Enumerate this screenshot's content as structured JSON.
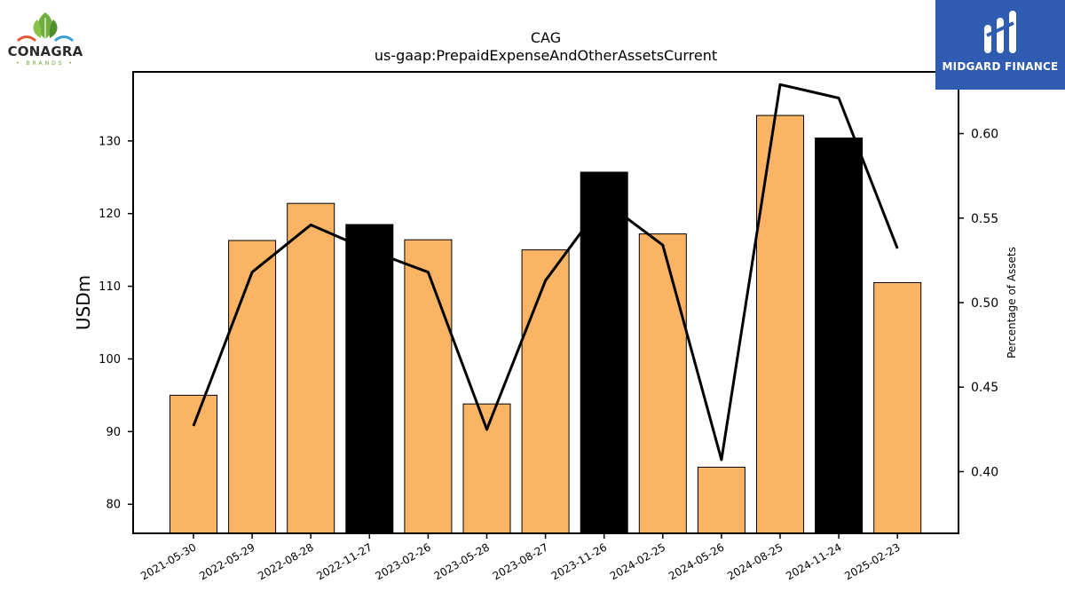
{
  "logos": {
    "left": {
      "name": "CONAGRA",
      "sub": "• BRANDS •"
    },
    "right": {
      "name": "MIDGARD FINANCE"
    }
  },
  "chart_data": {
    "type": "bar",
    "title": "CAG",
    "subtitle": "us-gaap:PrepaidExpenseAndOtherAssetsCurrent",
    "xlabel": "",
    "ylabel": "USDm",
    "y2label": "Percentage of Assets",
    "categories": [
      "2021-05-30",
      "2022-05-29",
      "2022-08-28",
      "2022-11-27",
      "2023-02-26",
      "2023-05-28",
      "2023-08-27",
      "2023-11-26",
      "2024-02-25",
      "2024-05-26",
      "2024-08-25",
      "2024-11-24",
      "2025-02-23"
    ],
    "series": [
      {
        "axis": "left",
        "kind": "bar",
        "values": [
          95.0,
          116.3,
          121.4,
          118.5,
          116.4,
          93.8,
          115.0,
          125.7,
          117.2,
          85.1,
          133.5,
          130.4,
          110.5
        ],
        "colors": [
          "#fbb463",
          "#fbb463",
          "#fbb463",
          "#000000",
          "#fbb463",
          "#fbb463",
          "#fbb463",
          "#000000",
          "#fbb463",
          "#fbb463",
          "#fbb463",
          "#000000",
          "#fbb463"
        ]
      },
      {
        "axis": "right",
        "kind": "line",
        "color": "#000000",
        "values": [
          0.427,
          0.518,
          0.546,
          0.531,
          0.518,
          0.425,
          0.513,
          0.56,
          0.534,
          0.407,
          0.629,
          0.621,
          0.532
        ]
      }
    ],
    "ylim": [
      76,
      139.5
    ],
    "y2lim": [
      0.3635,
      0.6365
    ],
    "yticks": [
      "80",
      "90",
      "100",
      "110",
      "120",
      "130"
    ],
    "y2ticks": [
      "0.40",
      "0.45",
      "0.50",
      "0.55",
      "0.60"
    ],
    "grid": false,
    "legend": "none"
  }
}
